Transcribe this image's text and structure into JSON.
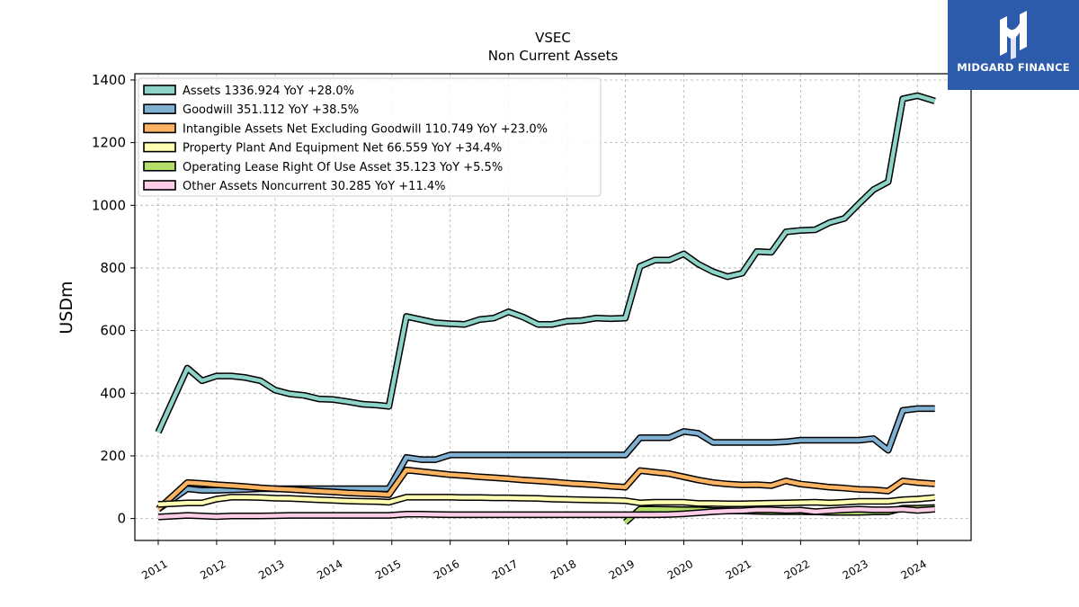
{
  "logo": {
    "text": "MIDGARD FINANCE",
    "bg_color": "#2d5bab"
  },
  "chart_data": {
    "type": "line",
    "title": "VSEC",
    "subtitle": "Non Current  Assets",
    "ylabel": "USDm",
    "xlabel": "",
    "xlim": [
      2010.6,
      2024.92
    ],
    "ylim": [
      -70,
      1420
    ],
    "yticks": [
      0,
      200,
      400,
      600,
      800,
      1000,
      1200,
      1400
    ],
    "xticks": [
      "2011",
      "2012",
      "2013",
      "2014",
      "2015",
      "2016",
      "2017",
      "2018",
      "2019",
      "2020",
      "2021",
      "2022",
      "2023",
      "2024"
    ],
    "grid": true,
    "legend_position": "top-left",
    "series": [
      {
        "name": "Assets  1336.924 YoY +28.0%",
        "color": "#8dd3c7",
        "x": [
          2011.0,
          2011.5,
          2011.75,
          2012.0,
          2012.25,
          2012.5,
          2012.75,
          2013.0,
          2013.25,
          2013.5,
          2013.75,
          2014.0,
          2014.25,
          2014.5,
          2014.75,
          2014.95,
          2015.25,
          2015.5,
          2015.75,
          2016.0,
          2016.25,
          2016.5,
          2016.75,
          2017.0,
          2017.25,
          2017.5,
          2017.75,
          2018.0,
          2018.25,
          2018.5,
          2018.75,
          2019.0,
          2019.25,
          2019.5,
          2019.75,
          2020.0,
          2020.25,
          2020.5,
          2020.75,
          2021.0,
          2021.25,
          2021.5,
          2021.75,
          2022.0,
          2022.25,
          2022.5,
          2022.75,
          2023.0,
          2023.25,
          2023.5,
          2023.75,
          2024.0,
          2024.3
        ],
        "values": [
          275,
          480,
          440,
          455,
          455,
          450,
          440,
          410,
          398,
          393,
          382,
          380,
          373,
          365,
          362,
          358,
          645,
          635,
          625,
          622,
          620,
          635,
          640,
          660,
          643,
          620,
          620,
          630,
          632,
          640,
          638,
          640,
          805,
          825,
          825,
          845,
          812,
          788,
          772,
          783,
          852,
          850,
          915,
          920,
          922,
          945,
          958,
          1005,
          1050,
          1075,
          1340,
          1350,
          1333
        ]
      },
      {
        "name": "Goodwill  351.112 YoY +38.5%",
        "color": "#80b1d3",
        "x": [
          2011.0,
          2011.5,
          2011.75,
          2012.0,
          2012.25,
          2012.5,
          2012.75,
          2013.0,
          2013.25,
          2013.5,
          2013.75,
          2014.0,
          2014.25,
          2014.5,
          2014.75,
          2014.95,
          2015.25,
          2015.5,
          2015.75,
          2016.0,
          2016.25,
          2016.5,
          2016.75,
          2017.0,
          2017.25,
          2017.5,
          2017.75,
          2018.0,
          2018.25,
          2018.5,
          2018.75,
          2019.0,
          2019.25,
          2019.5,
          2019.75,
          2020.0,
          2020.25,
          2020.5,
          2020.75,
          2021.0,
          2021.25,
          2021.5,
          2021.75,
          2022.0,
          2022.25,
          2022.5,
          2022.75,
          2023.0,
          2023.25,
          2023.5,
          2023.75,
          2024.0,
          2024.3
        ],
        "values": [
          30,
          95,
          90,
          90,
          92,
          93,
          95,
          95,
          95,
          95,
          95,
          95,
          95,
          95,
          95,
          95,
          195,
          188,
          188,
          203,
          203,
          203,
          203,
          203,
          203,
          203,
          203,
          203,
          203,
          203,
          203,
          203,
          258,
          258,
          258,
          278,
          272,
          243,
          243,
          243,
          243,
          243,
          245,
          250,
          250,
          250,
          250,
          250,
          255,
          218,
          345,
          351,
          351
        ]
      },
      {
        "name": "Intangible Assets Net Excluding Goodwill  110.749 YoY +23.0%",
        "color": "#fdb462",
        "x": [
          2011.0,
          2011.5,
          2011.75,
          2012.0,
          2012.25,
          2012.5,
          2012.75,
          2013.0,
          2013.25,
          2013.5,
          2013.75,
          2014.0,
          2014.25,
          2014.5,
          2014.75,
          2014.95,
          2015.25,
          2015.5,
          2015.75,
          2016.0,
          2016.25,
          2016.5,
          2016.75,
          2017.0,
          2017.25,
          2017.5,
          2017.75,
          2018.0,
          2018.25,
          2018.5,
          2018.75,
          2019.0,
          2019.25,
          2019.5,
          2019.75,
          2020.0,
          2020.25,
          2020.5,
          2020.75,
          2021.0,
          2021.25,
          2021.5,
          2021.75,
          2022.0,
          2022.25,
          2022.5,
          2022.75,
          2023.0,
          2023.25,
          2023.5,
          2023.75,
          2024.0,
          2024.3
        ],
        "values": [
          30,
          115,
          112,
          108,
          105,
          102,
          98,
          95,
          93,
          90,
          87,
          85,
          82,
          80,
          78,
          76,
          155,
          150,
          145,
          140,
          137,
          133,
          130,
          127,
          123,
          120,
          117,
          113,
          110,
          107,
          103,
          100,
          153,
          148,
          143,
          133,
          123,
          115,
          110,
          107,
          108,
          105,
          120,
          110,
          105,
          100,
          97,
          93,
          92,
          88,
          120,
          115,
          111
        ]
      },
      {
        "name": "Property Plant And Equipment Net  66.559 YoY +34.4%",
        "color": "#ffffb3",
        "x": [
          2011.0,
          2011.5,
          2011.75,
          2012.0,
          2012.25,
          2012.5,
          2012.75,
          2013.0,
          2013.25,
          2013.5,
          2013.75,
          2014.0,
          2014.25,
          2014.5,
          2014.75,
          2014.95,
          2015.25,
          2015.5,
          2015.75,
          2016.0,
          2016.25,
          2016.5,
          2016.75,
          2017.0,
          2017.25,
          2017.5,
          2017.75,
          2018.0,
          2018.25,
          2018.5,
          2018.75,
          2019.0,
          2019.25,
          2019.5,
          2019.75,
          2020.0,
          2020.25,
          2020.5,
          2020.75,
          2021.0,
          2021.25,
          2021.5,
          2021.75,
          2022.0,
          2022.25,
          2022.5,
          2022.75,
          2023.0,
          2023.25,
          2023.5,
          2023.75,
          2024.0,
          2024.3
        ],
        "values": [
          45,
          50,
          50,
          62,
          68,
          68,
          67,
          65,
          64,
          62,
          60,
          58,
          56,
          55,
          54,
          52,
          68,
          68,
          68,
          68,
          67,
          67,
          66,
          66,
          65,
          64,
          62,
          61,
          60,
          59,
          58,
          57,
          50,
          52,
          52,
          52,
          48,
          48,
          47,
          47,
          48,
          49,
          50,
          51,
          52,
          50,
          52,
          55,
          55,
          55,
          60,
          62,
          67
        ]
      },
      {
        "name": "Operating Lease Right Of Use Asset  35.123 YoY +5.5%",
        "color": "#b3de69",
        "x": [
          2019.0,
          2019.25,
          2019.5,
          2019.75,
          2020.0,
          2020.25,
          2020.5,
          2020.75,
          2021.0,
          2021.25,
          2021.5,
          2021.75,
          2022.0,
          2022.25,
          2022.5,
          2022.75,
          2023.0,
          2023.25,
          2023.5,
          2023.75,
          2024.0,
          2024.3
        ],
        "values": [
          -12,
          30,
          30,
          29,
          28,
          28,
          26,
          25,
          24,
          23,
          22,
          22,
          22,
          21,
          20,
          20,
          20,
          21,
          21,
          33,
          33,
          35
        ]
      },
      {
        "name": "Other Assets Noncurrent  30.285 YoY +11.4%",
        "color": "#fccde5",
        "x": [
          2011.0,
          2011.5,
          2011.75,
          2012.0,
          2012.25,
          2012.5,
          2012.75,
          2013.0,
          2013.25,
          2013.5,
          2013.75,
          2014.0,
          2014.25,
          2014.5,
          2014.75,
          2014.95,
          2015.25,
          2015.5,
          2015.75,
          2016.0,
          2016.25,
          2016.5,
          2016.75,
          2017.0,
          2017.25,
          2017.5,
          2017.75,
          2018.0,
          2018.25,
          2018.5,
          2018.75,
          2019.0,
          2019.25,
          2019.5,
          2019.75,
          2020.0,
          2020.25,
          2020.5,
          2020.75,
          2021.0,
          2021.25,
          2021.5,
          2021.75,
          2022.0,
          2022.25,
          2022.5,
          2022.75,
          2023.0,
          2023.25,
          2023.5,
          2023.75,
          2024.0,
          2024.3
        ],
        "values": [
          5,
          10,
          8,
          6,
          8,
          8,
          8,
          9,
          10,
          10,
          10,
          10,
          10,
          10,
          10,
          10,
          14,
          14,
          13,
          12,
          12,
          12,
          12,
          12,
          12,
          12,
          12,
          12,
          12,
          12,
          12,
          12,
          12,
          12,
          13,
          15,
          18,
          22,
          24,
          25,
          28,
          28,
          26,
          27,
          22,
          25,
          28,
          30,
          28,
          28,
          30,
          26,
          30
        ]
      }
    ]
  }
}
